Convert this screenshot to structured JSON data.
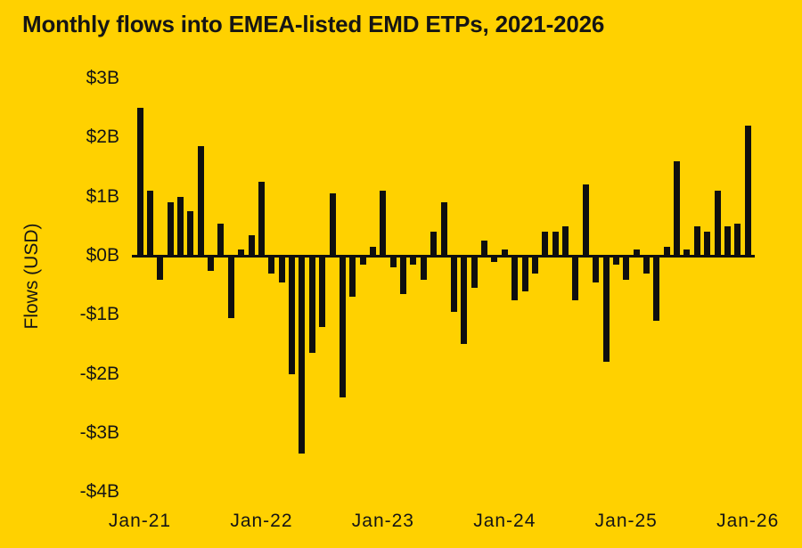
{
  "title": "Monthly flows into EMEA-listed EMD ETPs, 2021-2026",
  "colors": {
    "background": "#FFD100",
    "bar": "#0F0F0F",
    "text": "#151515"
  },
  "chart_data": {
    "type": "bar",
    "title": "Monthly flows into EMEA-listed EMD ETPs, 2021-2026",
    "xlabel": "",
    "ylabel": "Flows (USD)",
    "unit": "USD billions",
    "ylim": [
      -4,
      3
    ],
    "grid": false,
    "legend_position": "none",
    "categories": [
      "Jan-21",
      "Feb-21",
      "Mar-21",
      "Apr-21",
      "May-21",
      "Jun-21",
      "Jul-21",
      "Aug-21",
      "Sep-21",
      "Oct-21",
      "Nov-21",
      "Dec-21",
      "Jan-22",
      "Feb-22",
      "Mar-22",
      "Apr-22",
      "May-22",
      "Jun-22",
      "Jul-22",
      "Aug-22",
      "Sep-22",
      "Oct-22",
      "Nov-22",
      "Dec-22",
      "Jan-23",
      "Feb-23",
      "Mar-23",
      "Apr-23",
      "May-23",
      "Jun-23",
      "Jul-23",
      "Aug-23",
      "Sep-23",
      "Oct-23",
      "Nov-23",
      "Dec-23",
      "Jan-24",
      "Feb-24",
      "Mar-24",
      "Apr-24",
      "May-24",
      "Jun-24",
      "Jul-24",
      "Aug-24",
      "Sep-24",
      "Oct-24",
      "Nov-24",
      "Dec-24",
      "Jan-25",
      "Feb-25",
      "Mar-25",
      "Apr-25",
      "May-25",
      "Jun-25",
      "Jul-25",
      "Aug-25",
      "Sep-25",
      "Oct-25",
      "Nov-25",
      "Dec-25",
      "Jan-26"
    ],
    "values": [
      2.5,
      1.1,
      -0.4,
      0.9,
      1.0,
      0.75,
      1.85,
      -0.25,
      0.55,
      -1.05,
      0.1,
      0.35,
      1.25,
      -0.3,
      -0.45,
      -2.0,
      -3.35,
      -1.65,
      -1.2,
      1.05,
      -2.4,
      -0.7,
      -0.15,
      0.15,
      1.1,
      -0.2,
      -0.65,
      -0.15,
      -0.4,
      0.4,
      0.9,
      -0.95,
      -1.5,
      -0.55,
      0.25,
      -0.1,
      0.1,
      -0.75,
      -0.6,
      -0.3,
      0.4,
      0.4,
      0.5,
      -0.75,
      1.2,
      -0.45,
      -1.8,
      -0.15,
      -0.4,
      0.1,
      -0.3,
      -1.1,
      0.15,
      1.6,
      0.1,
      0.5,
      0.4,
      1.1,
      0.5,
      0.55,
      2.2
    ],
    "y_ticks": [
      {
        "label": "$3B",
        "value": 3
      },
      {
        "label": "$2B",
        "value": 2
      },
      {
        "label": "$1B",
        "value": 1
      },
      {
        "label": "$0B",
        "value": 0
      },
      {
        "label": "-$1B",
        "value": -1
      },
      {
        "label": "-$2B",
        "value": -2
      },
      {
        "label": "-$3B",
        "value": -3
      },
      {
        "label": "-$4B",
        "value": -4
      }
    ],
    "x_ticks": [
      {
        "label": "Jan-21",
        "index": 0
      },
      {
        "label": "Jan-22",
        "index": 12
      },
      {
        "label": "Jan-23",
        "index": 24
      },
      {
        "label": "Jan-24",
        "index": 36
      },
      {
        "label": "Jan-25",
        "index": 48
      },
      {
        "label": "Jan-26",
        "index": 60
      }
    ]
  }
}
